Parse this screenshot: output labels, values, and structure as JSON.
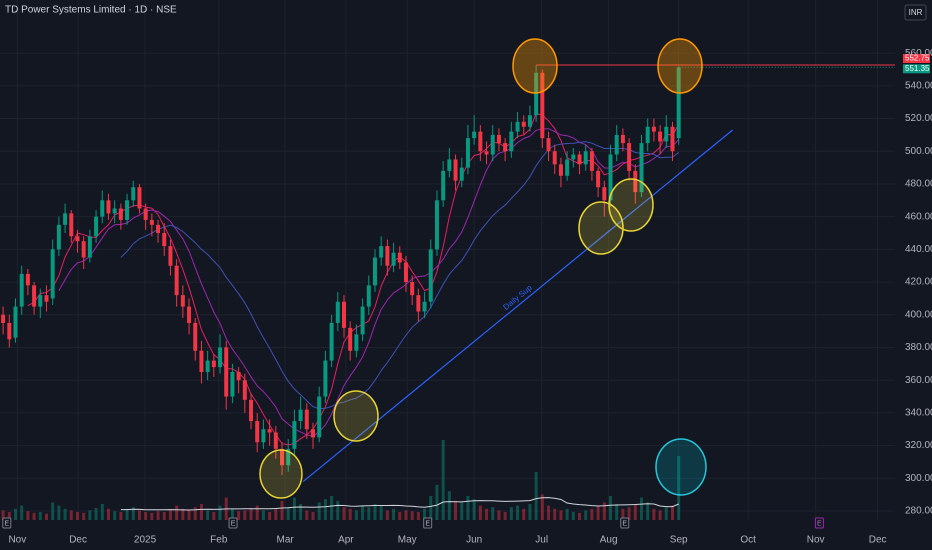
{
  "chart_data": {
    "type": "candlestick",
    "title": "TD Power Systems Limited · 1D · NSE",
    "currency": "INR",
    "up_color": "#089981",
    "down_color": "#f23645",
    "open": [
      400,
      395,
      386,
      405,
      425,
      418,
      405,
      412,
      410,
      440,
      455,
      462,
      448,
      445,
      435,
      448,
      460,
      470,
      462,
      465,
      458,
      470,
      478,
      465,
      458,
      455,
      450,
      442,
      430,
      412,
      405,
      395,
      378,
      365,
      372,
      368,
      380,
      350,
      365,
      360,
      348,
      335,
      322,
      330,
      328,
      318,
      308,
      318,
      335,
      342,
      330,
      325,
      350,
      372,
      395,
      408,
      392,
      378,
      388,
      405,
      418,
      435,
      442,
      430,
      438,
      432,
      420,
      412,
      402,
      408,
      440,
      470,
      488,
      495,
      482,
      490,
      508,
      512,
      500,
      498,
      510,
      505,
      500,
      512,
      518,
      515,
      522,
      548,
      508,
      500,
      492,
      485,
      495,
      498,
      492,
      500,
      488,
      478,
      470,
      498,
      510,
      505,
      488,
      475,
      505,
      515,
      512,
      506,
      515,
      508
    ],
    "high": [
      405,
      400,
      410,
      430,
      428,
      420,
      416,
      418,
      446,
      460,
      468,
      464,
      452,
      448,
      452,
      464,
      476,
      474,
      470,
      468,
      474,
      482,
      480,
      468,
      462,
      458,
      456,
      446,
      434,
      418,
      410,
      398,
      384,
      378,
      376,
      388,
      384,
      370,
      368,
      364,
      352,
      340,
      336,
      336,
      332,
      322,
      324,
      342,
      350,
      346,
      334,
      356,
      378,
      400,
      414,
      412,
      396,
      394,
      410,
      424,
      440,
      448,
      446,
      444,
      442,
      436,
      424,
      416,
      414,
      446,
      476,
      494,
      502,
      498,
      496,
      516,
      522,
      516,
      506,
      516,
      514,
      508,
      518,
      524,
      522,
      528,
      552.75,
      550,
      512,
      504,
      496,
      500,
      502,
      500,
      504,
      502,
      490,
      482,
      504,
      516,
      514,
      508,
      492,
      510,
      520,
      520,
      516,
      522,
      518,
      552
    ],
    "low": [
      388,
      380,
      383,
      400,
      412,
      400,
      398,
      402,
      406,
      436,
      450,
      444,
      438,
      428,
      432,
      444,
      456,
      458,
      456,
      452,
      455,
      466,
      462,
      452,
      448,
      444,
      436,
      424,
      405,
      398,
      388,
      372,
      358,
      360,
      362,
      364,
      342,
      346,
      352,
      340,
      330,
      316,
      318,
      320,
      312,
      302,
      304,
      314,
      330,
      324,
      318,
      322,
      346,
      368,
      390,
      386,
      372,
      374,
      384,
      400,
      414,
      430,
      424,
      426,
      428,
      414,
      406,
      396,
      398,
      404,
      436,
      466,
      484,
      476,
      478,
      486,
      504,
      494,
      492,
      494,
      500,
      494,
      496,
      508,
      510,
      512,
      518,
      502,
      494,
      486,
      478,
      482,
      490,
      486,
      488,
      482,
      472,
      460,
      466,
      494,
      500,
      482,
      468,
      472,
      500,
      506,
      498,
      502,
      494,
      504
    ],
    "close": [
      395,
      385,
      405,
      425,
      418,
      405,
      412,
      408,
      440,
      455,
      462,
      448,
      445,
      435,
      448,
      460,
      470,
      462,
      465,
      458,
      470,
      478,
      465,
      458,
      455,
      450,
      442,
      430,
      412,
      405,
      395,
      378,
      365,
      372,
      368,
      380,
      350,
      365,
      360,
      348,
      335,
      322,
      330,
      328,
      318,
      308,
      318,
      335,
      342,
      330,
      325,
      350,
      372,
      395,
      408,
      392,
      378,
      388,
      405,
      418,
      435,
      442,
      430,
      438,
      432,
      420,
      412,
      402,
      408,
      440,
      470,
      488,
      495,
      482,
      490,
      508,
      512,
      500,
      498,
      510,
      505,
      500,
      512,
      518,
      515,
      522,
      548,
      508,
      500,
      492,
      485,
      495,
      498,
      492,
      500,
      488,
      478,
      470,
      498,
      510,
      505,
      488,
      475,
      505,
      515,
      512,
      506,
      515,
      500,
      551.35
    ],
    "volume": [
      12,
      10,
      14,
      18,
      11,
      9,
      10,
      8,
      22,
      18,
      14,
      12,
      10,
      9,
      12,
      15,
      20,
      14,
      11,
      10,
      14,
      16,
      12,
      10,
      9,
      11,
      10,
      12,
      18,
      14,
      12,
      16,
      20,
      12,
      10,
      18,
      28,
      14,
      11,
      12,
      15,
      18,
      12,
      10,
      14,
      24,
      16,
      28,
      20,
      12,
      10,
      22,
      26,
      30,
      24,
      16,
      14,
      12,
      18,
      16,
      20,
      18,
      12,
      14,
      10,
      12,
      11,
      10,
      14,
      30,
      44,
      100,
      36,
      24,
      22,
      30,
      26,
      18,
      14,
      16,
      12,
      10,
      16,
      18,
      14,
      20,
      60,
      32,
      18,
      14,
      12,
      14,
      10,
      9,
      12,
      14,
      18,
      22,
      30,
      20,
      14,
      16,
      20,
      28,
      22,
      14,
      12,
      16,
      18,
      80
    ],
    "xlim": [
      -0.5,
      143.9
    ],
    "xticks": [
      {
        "value": 2.3,
        "label": "Nov"
      },
      {
        "value": 12.1,
        "label": "Dec"
      },
      {
        "value": 22.9,
        "label": "2025"
      },
      {
        "value": 34.8,
        "label": "Feb"
      },
      {
        "value": 45.5,
        "label": "Mar"
      },
      {
        "value": 55.3,
        "label": "Apr"
      },
      {
        "value": 65.2,
        "label": "May"
      },
      {
        "value": 76,
        "label": "Jun"
      },
      {
        "value": 86.9,
        "label": "Jul"
      },
      {
        "value": 97.7,
        "label": "Aug"
      },
      {
        "value": 109,
        "label": "Sep"
      },
      {
        "value": 120.2,
        "label": "Oct"
      },
      {
        "value": 131.1,
        "label": "Nov"
      },
      {
        "value": 141.1,
        "label": "Dec"
      }
    ],
    "ylim": [
      274.5,
      592.5
    ],
    "yticks": [
      {
        "value": 280,
        "label": "280.00"
      },
      {
        "value": 300,
        "label": "300.00"
      },
      {
        "value": 320,
        "label": "320.00"
      },
      {
        "value": 340,
        "label": "340.00"
      },
      {
        "value": 360,
        "label": "360.00"
      },
      {
        "value": 380,
        "label": "380.00"
      },
      {
        "value": 400,
        "label": "400.00"
      },
      {
        "value": 420,
        "label": "420.00"
      },
      {
        "value": 440,
        "label": "440.00"
      },
      {
        "value": 460,
        "label": "460.00"
      },
      {
        "value": 480,
        "label": "480.00"
      },
      {
        "value": 500,
        "label": "500.00"
      },
      {
        "value": 520,
        "label": "520.00"
      },
      {
        "value": 540,
        "label": "540.00"
      },
      {
        "value": 560,
        "label": "560.00"
      }
    ],
    "grid": true,
    "resistance": {
      "value": 552.75,
      "color": "#f23645"
    },
    "trendline": {
      "label": "Daily Sup",
      "color": "#2962ff",
      "points": [
        {
          "x": 48.4,
          "y": 298
        },
        {
          "x": 117.7,
          "y": 513
        }
      ]
    },
    "events": [
      {
        "x": 0.6,
        "label": "E"
      },
      {
        "x": 37.1,
        "label": "E"
      },
      {
        "x": 68.5,
        "label": "E"
      },
      {
        "x": 100.3,
        "label": "E"
      },
      {
        "x": 131.7,
        "label": "E"
      }
    ]
  }
}
